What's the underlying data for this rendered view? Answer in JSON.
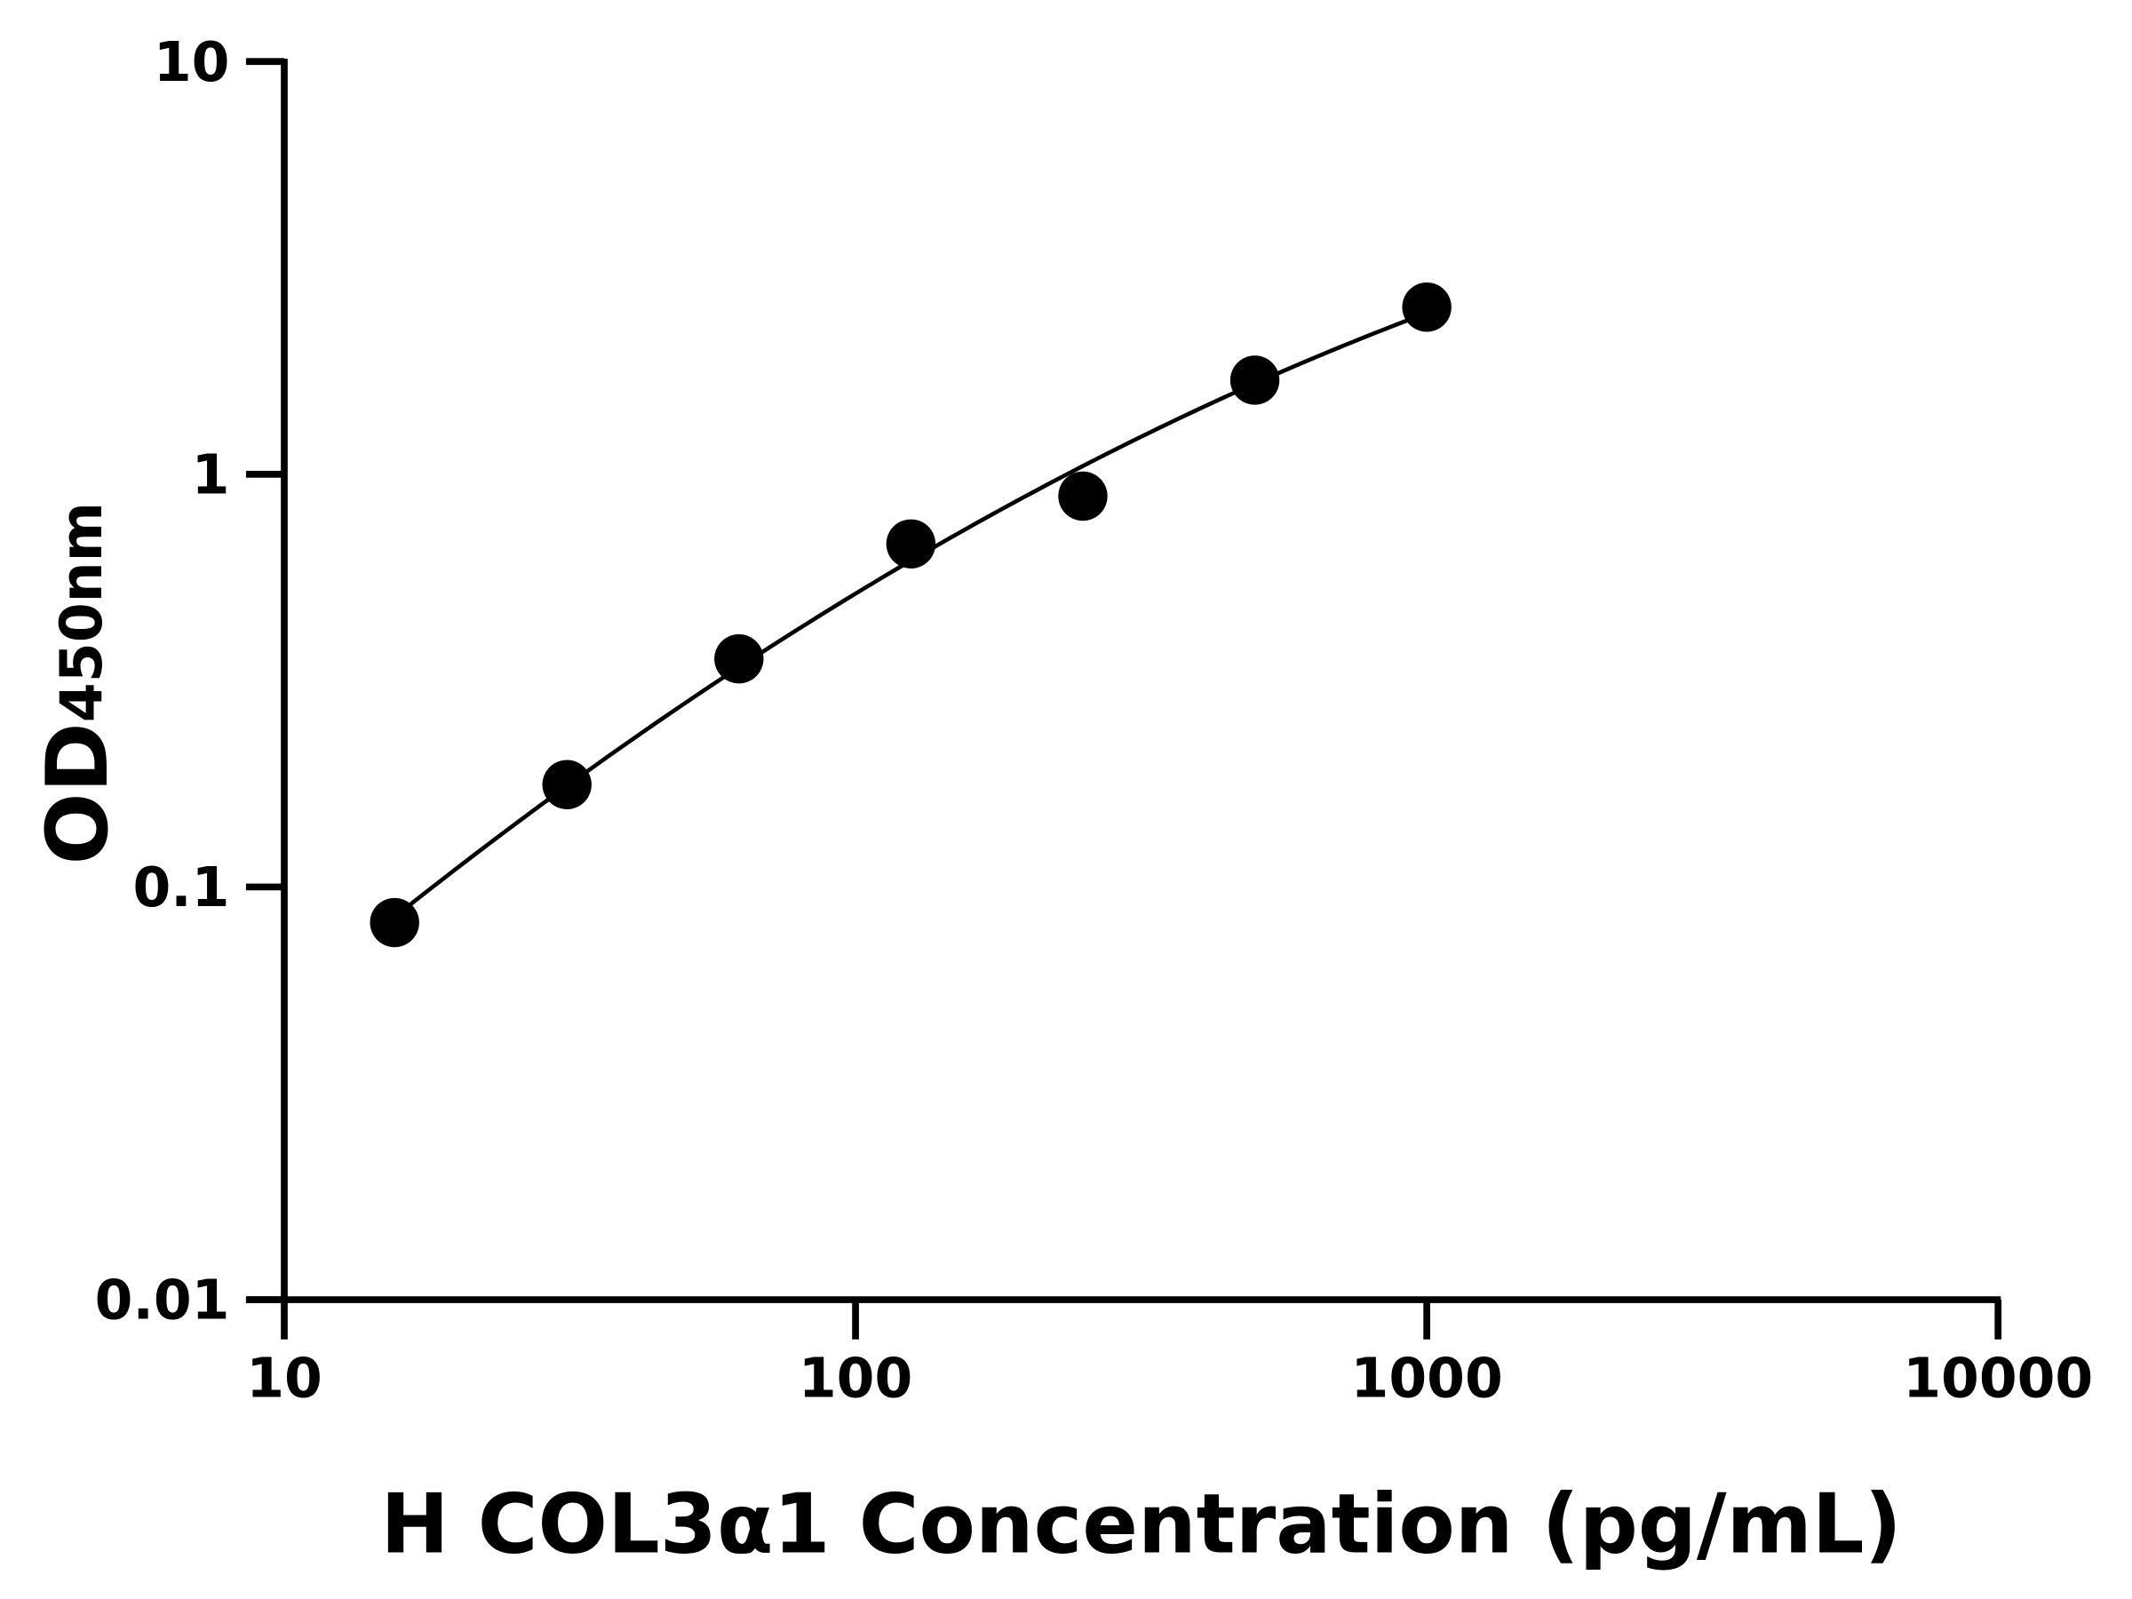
{
  "chart_data": {
    "type": "scatter",
    "title": "",
    "xlabel": "H COL3α1 Concentration (pg/mL)",
    "ylabel_main": "OD",
    "ylabel_sub": "450nm",
    "x_scale": "log",
    "y_scale": "log",
    "xlim": [
      10,
      10000
    ],
    "ylim": [
      0.01,
      10
    ],
    "x_ticks": [
      "10",
      "100",
      "1000",
      "10000"
    ],
    "y_ticks": [
      "0.01",
      "0.1",
      "1",
      "10"
    ],
    "grid": false,
    "fit_curve": true,
    "marker_color": "#000000",
    "series": [
      {
        "x": [
          15.6,
          31.25,
          62.5,
          125,
          250,
          500,
          1000
        ],
        "y": [
          0.082,
          0.177,
          0.357,
          0.678,
          0.885,
          1.69,
          2.54
        ]
      }
    ]
  }
}
